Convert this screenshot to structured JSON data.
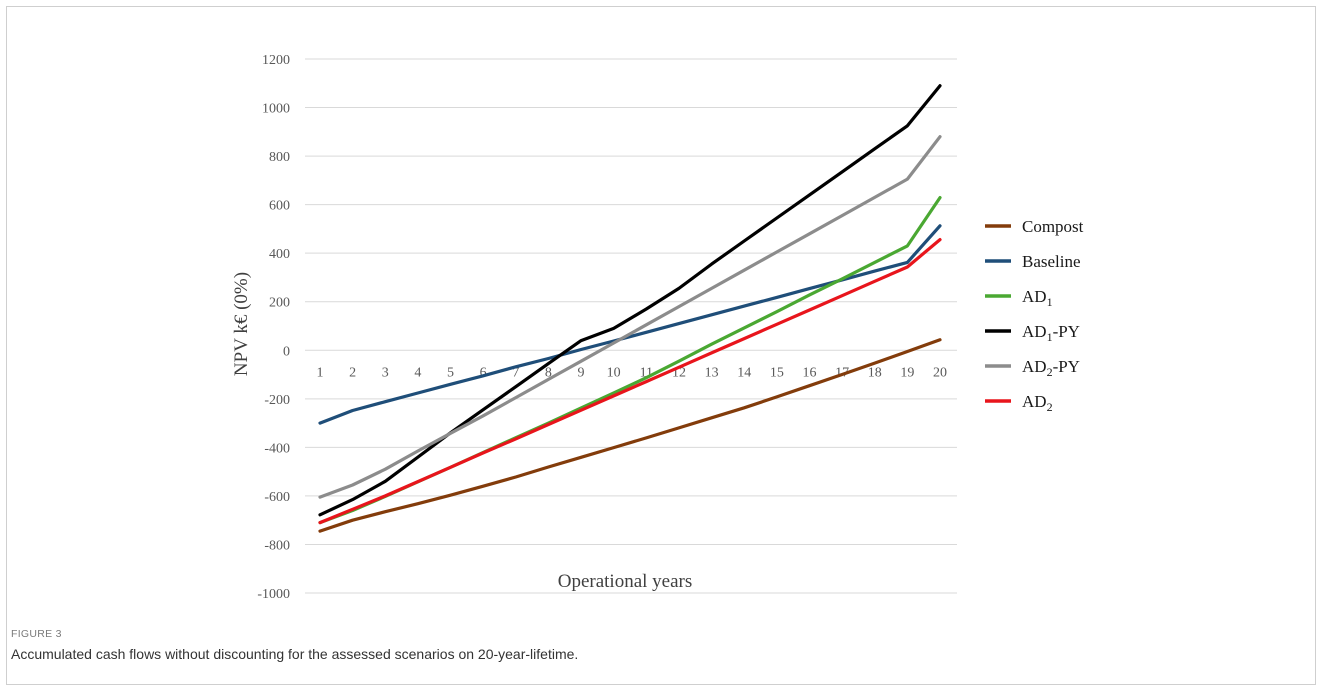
{
  "figure": {
    "label": "FIGURE 3",
    "caption": "Accumulated cash flows without discounting for the assessed scenarios on 20-year-lifetime."
  },
  "chart_data": {
    "type": "line",
    "title": "",
    "xlabel": "Operational years",
    "ylabel": "NPV k€ (0%)",
    "x": [
      1,
      2,
      3,
      4,
      5,
      6,
      7,
      8,
      9,
      10,
      11,
      12,
      13,
      14,
      15,
      16,
      17,
      18,
      19,
      20
    ],
    "ylim": [
      -1000,
      1200
    ],
    "yticks": [
      -1000,
      -800,
      -600,
      -400,
      -200,
      0,
      200,
      400,
      600,
      800,
      1000,
      1200
    ],
    "grid": "horizontal",
    "legend_position": "right",
    "series": [
      {
        "name": "Compost",
        "base": "Compost",
        "sub": "",
        "suffix": "",
        "color": "#833c0b",
        "values": [
          -745,
          -700,
          -665,
          -632,
          -597,
          -560,
          -522,
          -481,
          -441,
          -401,
          -361,
          -320,
          -278,
          -237,
          -192,
          -146,
          -100,
          -53,
          -5,
          43
        ]
      },
      {
        "name": "Baseline",
        "base": "Baseline",
        "sub": "",
        "suffix": "",
        "color": "#1f4e79",
        "values": [
          -300,
          -248,
          -212,
          -176,
          -140,
          -105,
          -68,
          -34,
          3,
          38,
          74,
          110,
          146,
          182,
          218,
          254,
          290,
          326,
          362,
          513
        ]
      },
      {
        "name": "AD1",
        "base": "AD",
        "sub": "1",
        "suffix": "",
        "color": "#4aa832",
        "values": [
          -710,
          -660,
          -602,
          -542,
          -482,
          -421,
          -360,
          -300,
          -238,
          -176,
          -113,
          -45,
          25,
          92,
          159,
          228,
          294,
          362,
          430,
          629
        ]
      },
      {
        "name": "AD1-PY",
        "base": "AD",
        "sub": "1",
        "suffix": "-PY",
        "color": "#000000",
        "values": [
          -678,
          -615,
          -540,
          -440,
          -340,
          -245,
          -150,
          -55,
          40,
          90,
          170,
          255,
          355,
          450,
          545,
          640,
          735,
          830,
          925,
          1090
        ]
      },
      {
        "name": "AD2-PY",
        "base": "AD",
        "sub": "2",
        "suffix": "-PY",
        "color": "#8c8c8c",
        "values": [
          -605,
          -555,
          -490,
          -415,
          -342,
          -270,
          -195,
          -120,
          -45,
          30,
          105,
          180,
          255,
          330,
          405,
          480,
          555,
          630,
          705,
          880
        ]
      },
      {
        "name": "AD2",
        "base": "AD",
        "sub": "2",
        "suffix": "",
        "color": "#e8151c",
        "values": [
          -710,
          -655,
          -600,
          -541,
          -482,
          -423,
          -365,
          -306,
          -247,
          -188,
          -129,
          -70,
          -11,
          48,
          107,
          166,
          225,
          284,
          343,
          456
        ]
      }
    ]
  }
}
